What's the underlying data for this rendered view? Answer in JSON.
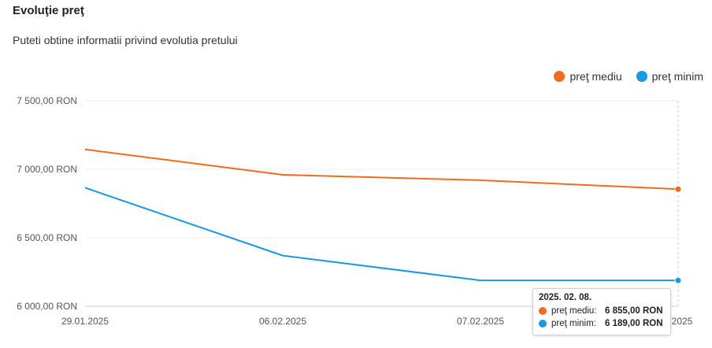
{
  "header": {
    "title": "Evoluţie preţ",
    "subtitle": "Puteti obtine informatii privind evolutia pretului"
  },
  "legend": [
    {
      "label": "preţ mediu",
      "color": "#f26b1d"
    },
    {
      "label": "preţ minim",
      "color": "#1a97e6"
    }
  ],
  "chart_data": {
    "type": "line",
    "categories": [
      "29.01.2025",
      "06.02.2025",
      "07.02.2025",
      "08.02.2025"
    ],
    "visible_tick_labels": [
      "29.01.2025",
      "06.02.2025",
      "07.02.2025",
      "2.2025"
    ],
    "y_ticks": [
      6000,
      6500,
      7000,
      7500
    ],
    "y_tick_labels": [
      "6 000,00 RON",
      "6 500,00 RON",
      "7 000,00 RON",
      "7 500,00 RON"
    ],
    "ylim": [
      6000,
      7500
    ],
    "grid": true,
    "legend_position": "top-right",
    "series": [
      {
        "name": "preţ mediu",
        "color": "#f26b1d",
        "values": [
          7145,
          6960,
          6920,
          6855
        ]
      },
      {
        "name": "preţ minim",
        "color": "#1a97e6",
        "values": [
          6865,
          6370,
          6189,
          6189
        ]
      }
    ]
  },
  "tooltip": {
    "date": "2025. 02. 08.",
    "rows": [
      {
        "name": "preţ mediu:",
        "value": "6 855,00 RON",
        "color": "#f26b1d"
      },
      {
        "name": "preţ minim:",
        "value": "6 189,00 RON",
        "color": "#1a97e6"
      }
    ]
  }
}
